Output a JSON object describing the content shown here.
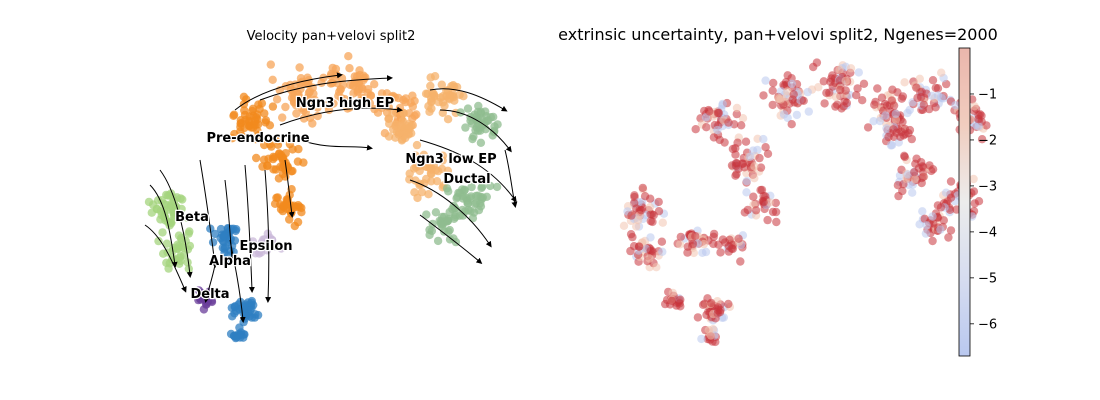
{
  "chart_data": [
    {
      "type": "scatter",
      "subtype": "velocity-streamplot",
      "title": "Velocity pan+velovi split2",
      "axes_visible": false,
      "grid": false,
      "clusters": [
        {
          "name": "Ngn3 high EP",
          "color": "#f7a55a",
          "label_shown": true
        },
        {
          "name": "Pre-endocrine",
          "color": "#f28a1d",
          "label_shown": true
        },
        {
          "name": "Ngn3 low EP",
          "color": "#f6b26b",
          "label_shown": true
        },
        {
          "name": "Ductal",
          "color": "#8fbc8f",
          "label_shown": true
        },
        {
          "name": "Beta",
          "color": "#a4d47d",
          "label_shown": true
        },
        {
          "name": "Epsilon",
          "color": "#cbb9d9",
          "label_shown": true
        },
        {
          "name": "Alpha",
          "color": "#2f7fc1",
          "label_shown": true
        },
        {
          "name": "Delta",
          "color": "#6a3d9a",
          "label_shown": true
        }
      ]
    },
    {
      "type": "scatter",
      "title": "extrinsic uncertainty, pan+velovi split2, Ngenes=2000",
      "axes_visible": false,
      "grid": false,
      "colorbar": {
        "colormap": "coolwarm",
        "range": [
          -6.7,
          0
        ],
        "ticks": [
          -1,
          -2,
          -3,
          -4,
          -5,
          -6
        ],
        "tick_labels": [
          "−1",
          "−2",
          "−3",
          "−4",
          "−5",
          "−6"
        ]
      }
    }
  ],
  "colors": {
    "stream": "#000000",
    "uncertainty_high": "#c8343c",
    "uncertainty_mid": "#f2c4b0",
    "uncertainty_low": "#b9c8ef"
  }
}
